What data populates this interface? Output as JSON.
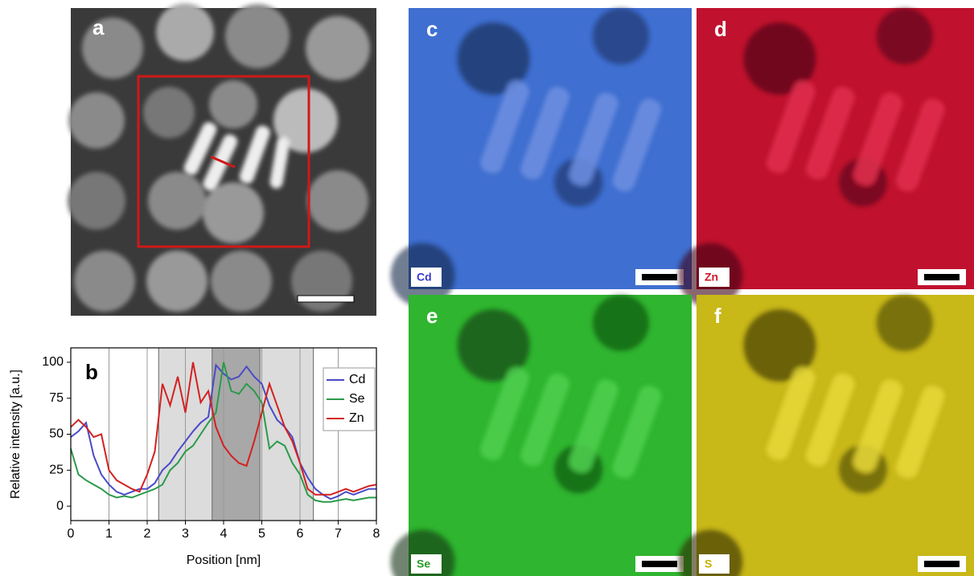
{
  "panels": {
    "a": "a",
    "b": "b",
    "c": "c",
    "d": "d",
    "e": "e",
    "f": "f"
  },
  "maps": {
    "c": "Cd",
    "d": "Zn",
    "e": "Se",
    "f": "S"
  },
  "chart_data": {
    "type": "line",
    "x_label": "Position [nm]",
    "y_label": "Relative intensity [a.u.]",
    "xlim": [
      0,
      8
    ],
    "ylim": [
      -10,
      110
    ],
    "xticks": [
      0,
      1,
      2,
      3,
      4,
      5,
      6,
      7,
      8
    ],
    "yticks": [
      0,
      25,
      50,
      75,
      100
    ],
    "grid": true,
    "legend": "upper right",
    "regions": [
      [
        2.3,
        6.35
      ],
      [
        3.7,
        4.95
      ]
    ],
    "x": [
      0,
      0.2,
      0.4,
      0.6,
      0.8,
      1,
      1.2,
      1.4,
      1.6,
      1.8,
      2,
      2.2,
      2.4,
      2.6,
      2.8,
      3,
      3.2,
      3.4,
      3.6,
      3.8,
      4,
      4.2,
      4.4,
      4.6,
      4.8,
      5,
      5.2,
      5.4,
      5.6,
      5.8,
      6,
      6.2,
      6.4,
      6.6,
      6.8,
      7,
      7.2,
      7.4,
      7.6,
      7.8,
      8
    ],
    "series": [
      {
        "name": "Cd",
        "color": "#4a4ac8",
        "values": [
          48,
          52,
          58,
          35,
          22,
          15,
          10,
          8,
          10,
          12,
          12,
          16,
          25,
          30,
          38,
          45,
          52,
          58,
          62,
          98,
          92,
          88,
          90,
          97,
          90,
          85,
          70,
          60,
          55,
          48,
          30,
          20,
          12,
          8,
          5,
          7,
          10,
          8,
          10,
          12,
          12
        ]
      },
      {
        "name": "Se",
        "color": "#2a9a4a",
        "values": [
          40,
          22,
          18,
          15,
          12,
          8,
          6,
          7,
          6,
          8,
          10,
          12,
          15,
          25,
          30,
          38,
          42,
          50,
          58,
          65,
          100,
          80,
          78,
          85,
          80,
          72,
          40,
          45,
          42,
          30,
          22,
          8,
          4,
          3,
          3,
          4,
          5,
          4,
          5,
          6,
          6
        ]
      },
      {
        "name": "Zn",
        "color": "#d42020",
        "values": [
          55,
          60,
          55,
          48,
          50,
          25,
          18,
          15,
          12,
          10,
          22,
          38,
          85,
          70,
          90,
          65,
          100,
          72,
          80,
          55,
          42,
          35,
          30,
          28,
          45,
          65,
          85,
          70,
          55,
          45,
          30,
          12,
          8,
          8,
          8,
          10,
          12,
          10,
          12,
          14,
          15
        ]
      }
    ]
  }
}
